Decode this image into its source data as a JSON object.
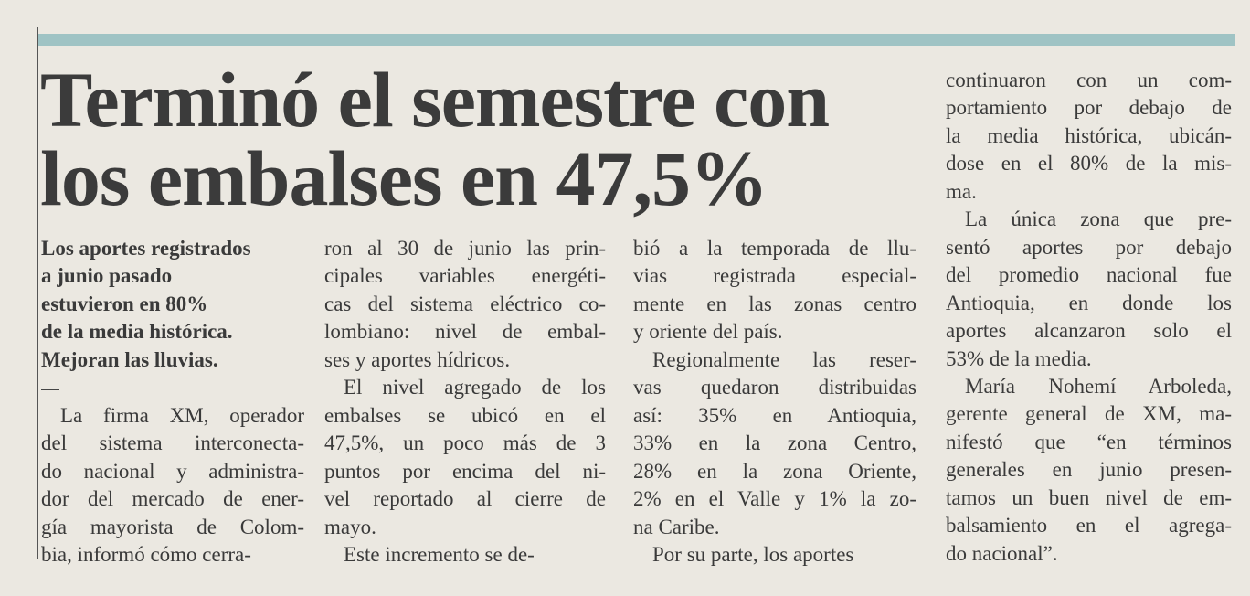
{
  "headline": {
    "lines": [
      "Terminó el semestre con",
      "los embalses en 47,5%"
    ]
  },
  "lead": {
    "lines": [
      "Los aportes registrados",
      "a junio pasado",
      "estuvieron en 80%",
      "de la media histórica.",
      "Mejoran las lluvias."
    ]
  },
  "columns": [
    {
      "paragraphs": [
        {
          "lines": [
            "La firma XM, operador",
            "del sistema interconecta-",
            "do nacional y administra-",
            "dor del mercado de ener-",
            "gía mayorista de Colom-",
            "bia, informó cómo cerra-"
          ]
        }
      ]
    },
    {
      "paragraphs": [
        {
          "lines": [
            "ron al 30 de junio las prin-",
            "cipales variables energéti-",
            "cas del sistema eléctrico co-",
            "lombiano: nivel de embal-",
            "ses y aportes hídricos."
          ]
        },
        {
          "lines": [
            "El nivel agregado de los",
            "embalses se ubicó en el",
            "47,5%, un poco más de 3",
            "puntos por encima del ni-",
            "vel reportado al cierre de",
            "mayo."
          ]
        },
        {
          "lines": [
            "Este incremento se de-"
          ]
        }
      ]
    },
    {
      "paragraphs": [
        {
          "lines": [
            "bió a la temporada de llu-",
            "vias registrada especial-",
            "mente en las zonas centro",
            "y oriente del país."
          ]
        },
        {
          "lines": [
            "Regionalmente las reser-",
            "vas quedaron distribuidas",
            "así: 35% en Antioquia,",
            "33% en la zona Centro,",
            "28% en la zona Oriente,",
            "2% en el Valle y 1% la zo-",
            "na Caribe."
          ]
        },
        {
          "lines": [
            "Por su parte, los aportes"
          ]
        }
      ]
    },
    {
      "paragraphs": [
        {
          "lines": [
            "continuaron con un com-",
            "portamiento por debajo de",
            "la media histórica, ubicán-",
            "dose en el 80% de la mis-",
            "ma."
          ]
        },
        {
          "lines": [
            "La única zona que pre-",
            "sentó aportes por debajo",
            "del promedio nacional fue",
            "Antioquia, en donde los",
            "aportes alcanzaron solo el",
            "53% de la media."
          ]
        },
        {
          "lines": [
            "María Nohemí Arboleda,",
            "gerente general de XM, ma-",
            "nifestó que “en términos",
            "generales en junio presen-",
            "tamos un buen nivel de em-",
            "balsamiento en el agrega-",
            "do nacional”."
          ]
        }
      ]
    }
  ]
}
